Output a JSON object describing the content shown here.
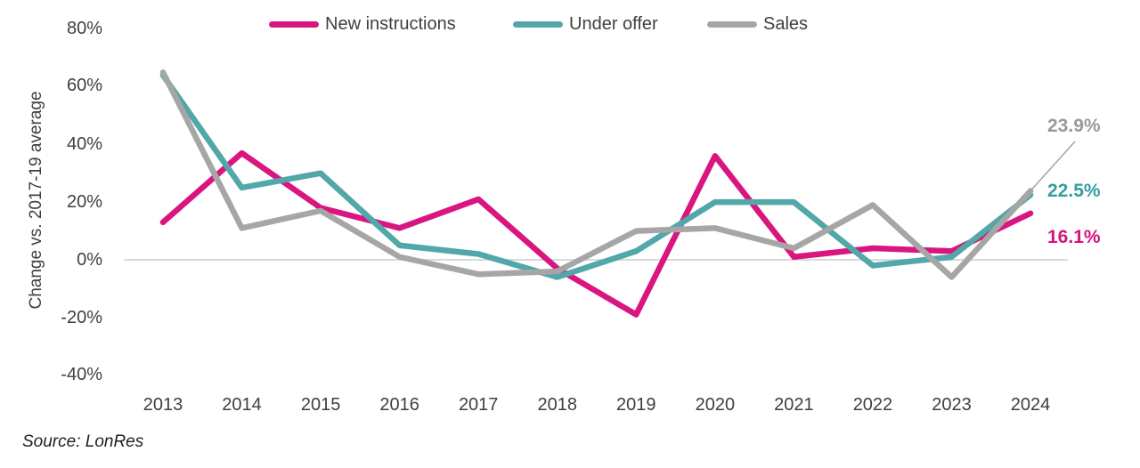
{
  "source": "Source: LonRes",
  "chart_data": {
    "type": "line",
    "title": "",
    "xlabel": "",
    "ylabel": "Change vs. 2017-19 average",
    "ylim": [
      -40,
      80
    ],
    "yticks": [
      {
        "label": "80%",
        "value": 80
      },
      {
        "label": "60%",
        "value": 60
      },
      {
        "label": "40%",
        "value": 40
      },
      {
        "label": "20%",
        "value": 20
      },
      {
        "label": "0%",
        "value": 0
      },
      {
        "label": "-20%",
        "value": -20
      },
      {
        "label": "-40%",
        "value": -40
      }
    ],
    "grid": "horizontal-zero-line-only",
    "gridline_color": "#d9d9d9",
    "legend_position": "top",
    "categories": [
      "2013",
      "2014",
      "2015",
      "2016",
      "2017",
      "2018",
      "2019",
      "2020",
      "2021",
      "2022",
      "2023",
      "2024"
    ],
    "series": [
      {
        "name": "New instructions",
        "color": "#d9157f",
        "label_color": "#d6127e",
        "end_label": "16.1%",
        "values": [
          13,
          37,
          18,
          11,
          21,
          -3,
          -19,
          36,
          1,
          4,
          3,
          16.1
        ]
      },
      {
        "name": "Under offer",
        "color": "#52a7a9",
        "label_color": "#359ea1",
        "end_label": "22.5%",
        "values": [
          64,
          25,
          30,
          5,
          2,
          -6,
          3,
          20,
          20,
          -2,
          1,
          22.5
        ]
      },
      {
        "name": "Sales",
        "color": "#a6a6a6",
        "label_color": "#999999",
        "end_label": "23.9%",
        "values": [
          65,
          11,
          17,
          1,
          -5,
          -4,
          10,
          11,
          4,
          19,
          -6,
          23.9
        ]
      }
    ]
  }
}
